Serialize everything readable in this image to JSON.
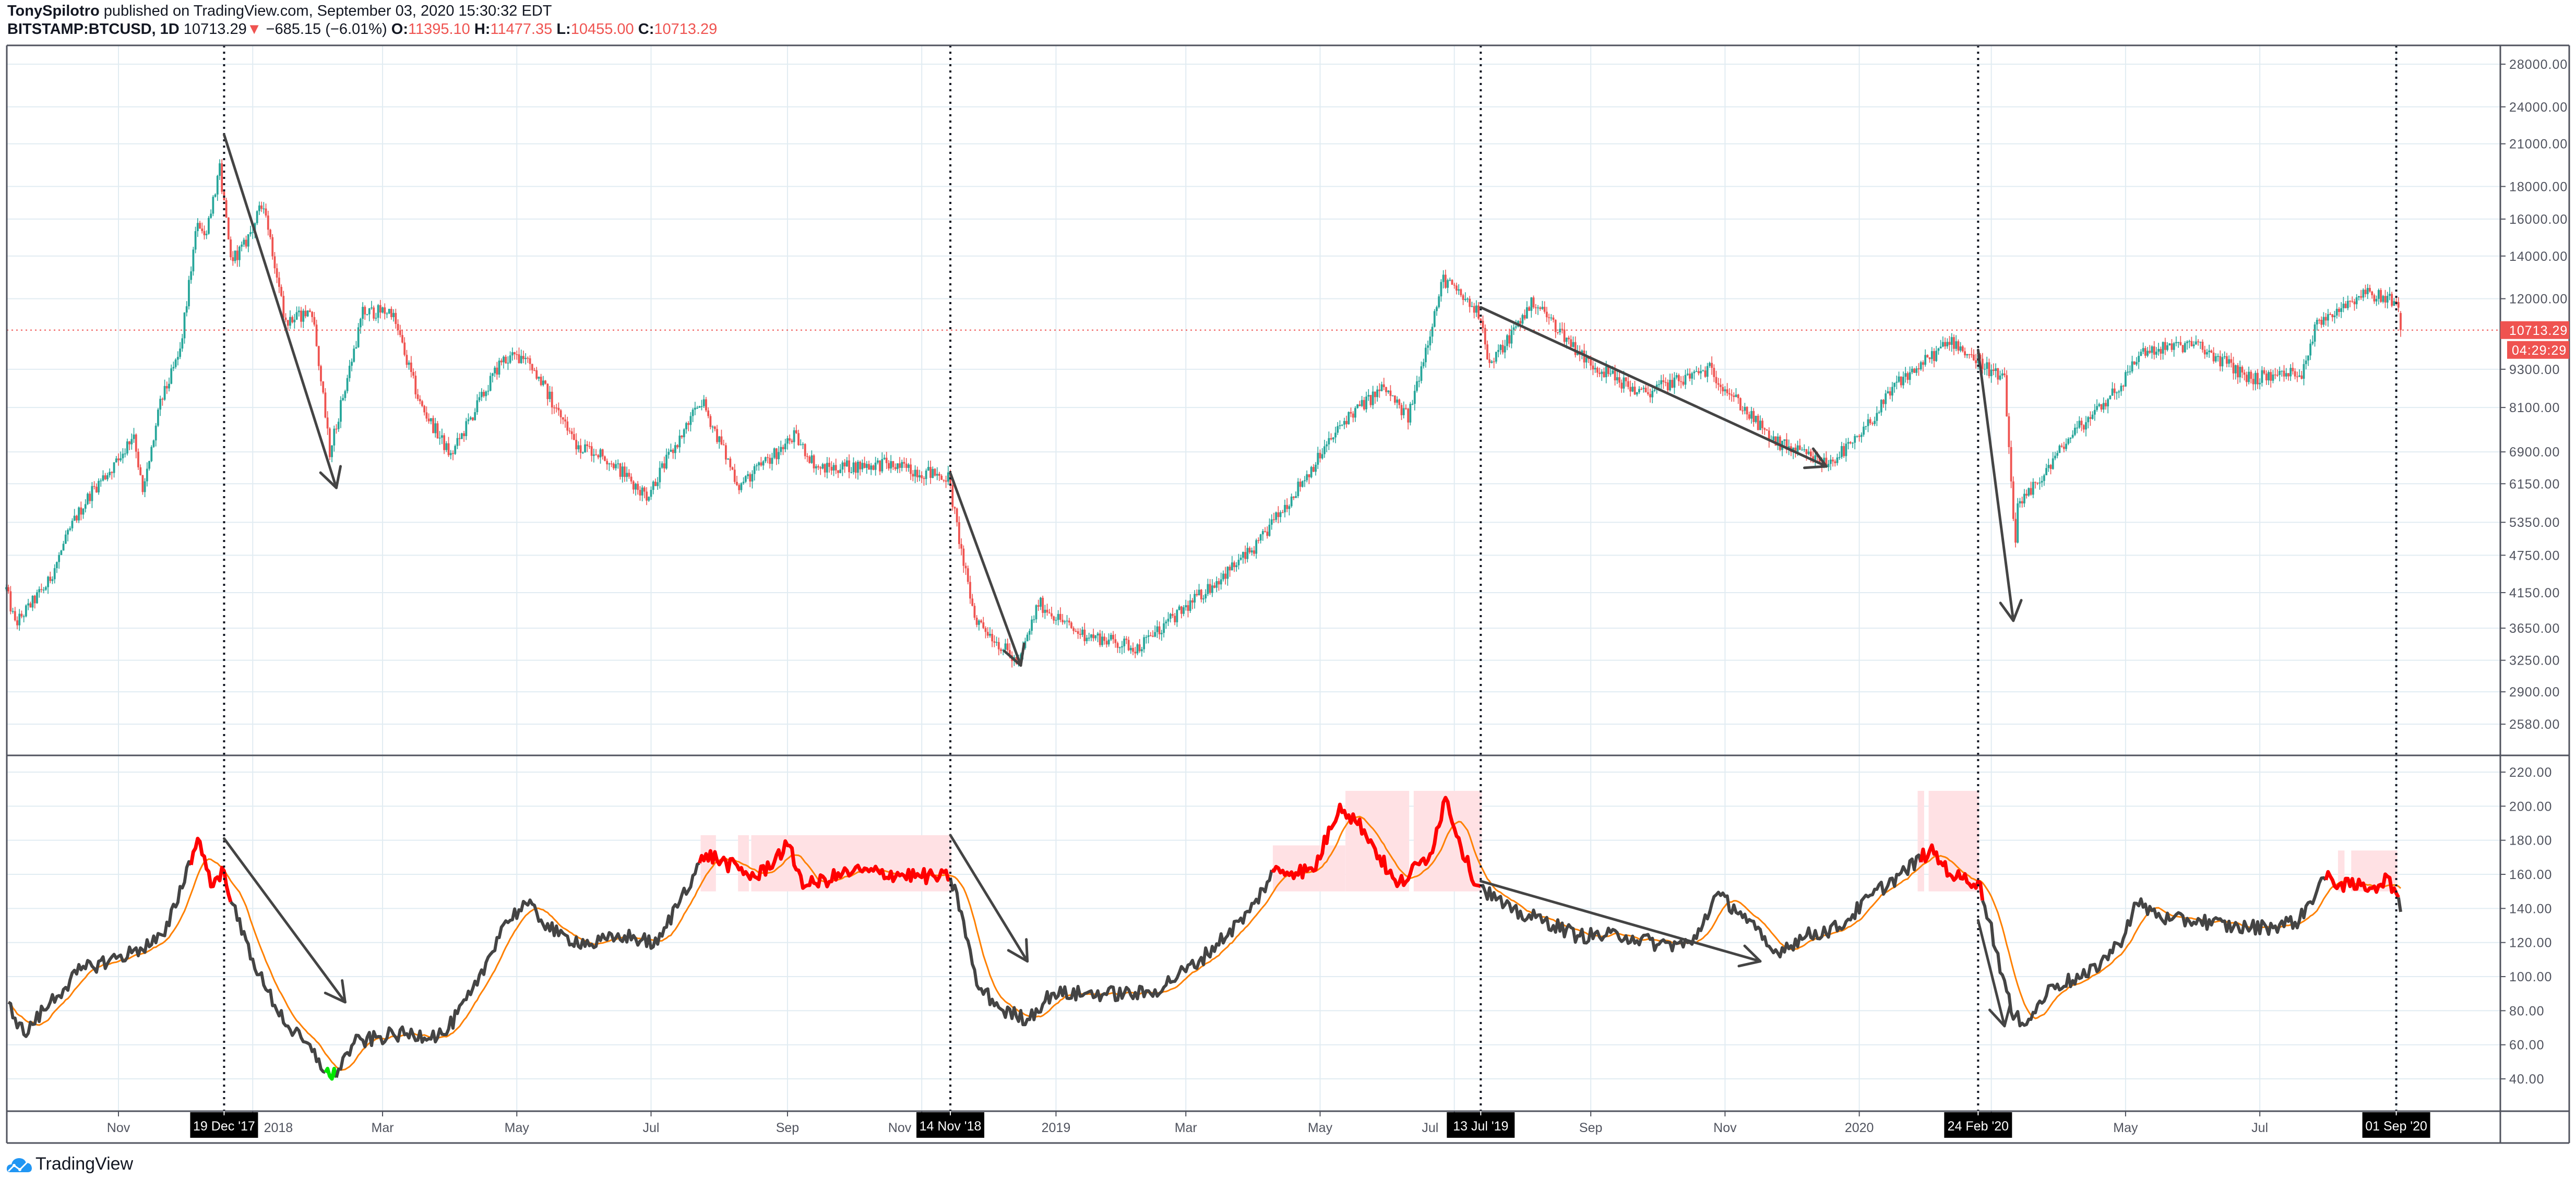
{
  "header": {
    "author": "TonySpilotro",
    "published": "published on TradingView.com, September 03, 2020 15:30:32 EDT",
    "symbol": "BITSTAMP:BTCUSD, 1D",
    "last": "10713.29",
    "change": "−685.15 (−6.01%)",
    "o_label": "O:",
    "o": "11395.10",
    "h_label": "H:",
    "h": "11477.35",
    "l_label": "L:",
    "l": "10455.00",
    "c_label": "C:",
    "c": "10713.29"
  },
  "colors": {
    "up": "#26a69a",
    "down": "#ef5350",
    "grid": "#e1ecf2",
    "axis": "#50535e",
    "indicator": "#444444",
    "indicator_hot": "#ff0000",
    "indicator_low": "#00e600",
    "ma": "#ff8000",
    "zone": "#ffe1e4",
    "arrow": "#444444",
    "logo": "#2196f3"
  },
  "price_axis": {
    "ticks": [
      "28000.00",
      "24000.00",
      "21000.00",
      "18000.00",
      "16000.00",
      "14000.00",
      "12000.00",
      "9300.00",
      "8100.00",
      "6900.00",
      "6150.00",
      "5350.00",
      "4750.00",
      "4150.00",
      "3650.00",
      "3250.00",
      "2900.00",
      "2580.00"
    ],
    "current_price_label": "10713.29",
    "countdown": "04:29:29"
  },
  "indicator_axis": {
    "ticks": [
      "220.00",
      "200.00",
      "180.00",
      "160.00",
      "140.00",
      "120.00",
      "100.00",
      "80.00",
      "60.00",
      "40.00"
    ]
  },
  "time_axis": {
    "labels": [
      {
        "text": "Nov",
        "date": "2017-11-01"
      },
      {
        "text": "2018",
        "date": "2018-01-01"
      },
      {
        "text": "Mar",
        "date": "2018-03-01"
      },
      {
        "text": "May",
        "date": "2018-05-01"
      },
      {
        "text": "Jul",
        "date": "2018-07-01"
      },
      {
        "text": "Sep",
        "date": "2018-09-01"
      },
      {
        "text": "Nov",
        "date": "2018-11-01"
      },
      {
        "text": "2019",
        "date": "2019-01-01"
      },
      {
        "text": "Mar",
        "date": "2019-03-01"
      },
      {
        "text": "May",
        "date": "2019-05-01"
      },
      {
        "text": "Jul",
        "date": "2019-07-01"
      },
      {
        "text": "Sep",
        "date": "2019-09-01"
      },
      {
        "text": "Nov",
        "date": "2019-11-01"
      },
      {
        "text": "2020",
        "date": "2020-01-01"
      },
      {
        "text": "May",
        "date": "2020-05-01"
      },
      {
        "text": "Jul",
        "date": "2020-07-01"
      }
    ],
    "grid_dates": [
      "2020-03-01",
      "2020-09-01"
    ],
    "markers": [
      {
        "text": "19 Dec '17",
        "date": "2017-12-19"
      },
      {
        "text": "14 Nov '18",
        "date": "2018-11-14"
      },
      {
        "text": "13 Jul '19",
        "date": "2019-07-13"
      },
      {
        "text": "24 Feb '20",
        "date": "2020-02-24"
      },
      {
        "text": "01 Sep '20",
        "date": "2020-09-01"
      }
    ]
  },
  "footer": {
    "logo_text": "TradingView"
  },
  "chart_data": [
    {
      "type": "candlestick",
      "title": "BITSTAMP:BTCUSD, 1D",
      "scale": "log",
      "ylim": [
        2400,
        30000
      ],
      "approx_closes": [
        [
          "2017-09-11",
          4200
        ],
        [
          "2017-09-15",
          3700
        ],
        [
          "2017-09-30",
          4300
        ],
        [
          "2017-10-12",
          5400
        ],
        [
          "2017-10-20",
          6000
        ],
        [
          "2017-11-01",
          6700
        ],
        [
          "2017-11-08",
          7400
        ],
        [
          "2017-11-12",
          5900
        ],
        [
          "2017-11-20",
          8200
        ],
        [
          "2017-11-29",
          9900
        ],
        [
          "2017-12-07",
          16000
        ],
        [
          "2017-12-10",
          15000
        ],
        [
          "2017-12-17",
          19100
        ],
        [
          "2017-12-22",
          13800
        ],
        [
          "2017-12-28",
          14500
        ],
        [
          "2018-01-06",
          17000
        ],
        [
          "2018-01-16",
          11000
        ],
        [
          "2018-01-28",
          11500
        ],
        [
          "2018-02-05",
          6900
        ],
        [
          "2018-02-20",
          11400
        ],
        [
          "2018-03-05",
          11500
        ],
        [
          "2018-03-18",
          8200
        ],
        [
          "2018-04-01",
          6800
        ],
        [
          "2018-04-24",
          9600
        ],
        [
          "2018-05-05",
          9800
        ],
        [
          "2018-05-28",
          7100
        ],
        [
          "2018-06-10",
          6800
        ],
        [
          "2018-06-29",
          5900
        ],
        [
          "2018-07-24",
          8300
        ],
        [
          "2018-08-10",
          6100
        ],
        [
          "2018-09-04",
          7300
        ],
        [
          "2018-09-15",
          6500
        ],
        [
          "2018-10-15",
          6600
        ],
        [
          "2018-11-13",
          6300
        ],
        [
          "2018-11-20",
          4600
        ],
        [
          "2018-11-25",
          3800
        ],
        [
          "2018-12-15",
          3200
        ],
        [
          "2018-12-24",
          4000
        ],
        [
          "2019-01-10",
          3600
        ],
        [
          "2019-02-07",
          3400
        ],
        [
          "2019-02-24",
          3800
        ],
        [
          "2019-04-02",
          4900
        ],
        [
          "2019-05-13",
          7800
        ],
        [
          "2019-05-30",
          8700
        ],
        [
          "2019-06-10",
          7800
        ],
        [
          "2019-06-26",
          12900
        ],
        [
          "2019-07-13",
          11300
        ],
        [
          "2019-07-17",
          9400
        ],
        [
          "2019-08-06",
          11900
        ],
        [
          "2019-08-30",
          9600
        ],
        [
          "2019-09-24",
          8500
        ],
        [
          "2019-10-25",
          9300
        ],
        [
          "2019-11-22",
          7200
        ],
        [
          "2019-12-17",
          6600
        ],
        [
          "2019-12-31",
          7200
        ],
        [
          "2020-01-19",
          8900
        ],
        [
          "2020-02-12",
          10300
        ],
        [
          "2020-02-24",
          9600
        ],
        [
          "2020-03-07",
          8900
        ],
        [
          "2020-03-12",
          4900
        ],
        [
          "2020-03-13",
          5600
        ],
        [
          "2020-04-06",
          7300
        ],
        [
          "2020-04-29",
          8800
        ],
        [
          "2020-05-08",
          9900
        ],
        [
          "2020-06-01",
          10200
        ],
        [
          "2020-06-27",
          9000
        ],
        [
          "2020-07-20",
          9200
        ],
        [
          "2020-07-27",
          11000
        ],
        [
          "2020-08-17",
          12300
        ],
        [
          "2020-09-01",
          11900
        ],
        [
          "2020-09-02",
          11395.1
        ]
      ],
      "last_bar": {
        "date": "2020-09-03",
        "open": 11395.1,
        "high": 11477.35,
        "low": 10455.0,
        "close": 10713.29
      }
    },
    {
      "type": "line",
      "title": "indicator",
      "ylim": [
        25,
        225
      ],
      "series": [
        {
          "name": "indicator",
          "values": [
            [
              "2017-09-12",
              85
            ],
            [
              "2017-09-19",
              66
            ],
            [
              "2017-10-01",
              85
            ],
            [
              "2017-10-15",
              104
            ],
            [
              "2017-11-07",
              114
            ],
            [
              "2017-11-22",
              124
            ],
            [
              "2017-12-07",
              181
            ],
            [
              "2017-12-14",
              153
            ],
            [
              "2017-12-19",
              162
            ],
            [
              "2017-12-25",
              133
            ],
            [
              "2018-01-06",
              95
            ],
            [
              "2018-01-17",
              71
            ],
            [
              "2018-01-28",
              56
            ],
            [
              "2018-02-06",
              40
            ],
            [
              "2018-02-16",
              61
            ],
            [
              "2018-03-06",
              66
            ],
            [
              "2018-03-29",
              66
            ],
            [
              "2018-04-13",
              95
            ],
            [
              "2018-04-24",
              129
            ],
            [
              "2018-05-05",
              143
            ],
            [
              "2018-05-20",
              124
            ],
            [
              "2018-06-04",
              119
            ],
            [
              "2018-06-19",
              124
            ],
            [
              "2018-07-04",
              119
            ],
            [
              "2018-07-15",
              148
            ],
            [
              "2018-07-26",
              172
            ],
            [
              "2018-08-18",
              158
            ],
            [
              "2018-09-01",
              177
            ],
            [
              "2018-09-09",
              153
            ],
            [
              "2018-10-01",
              162
            ],
            [
              "2018-10-31",
              159
            ],
            [
              "2018-11-14",
              158
            ],
            [
              "2018-11-19",
              138
            ],
            [
              "2018-11-26",
              95
            ],
            [
              "2018-12-08",
              80
            ],
            [
              "2018-12-19",
              75
            ],
            [
              "2018-12-30",
              90
            ],
            [
              "2019-01-14",
              90
            ],
            [
              "2019-02-13",
              90
            ],
            [
              "2019-03-07",
              109
            ],
            [
              "2019-03-30",
              138
            ],
            [
              "2019-04-10",
              162
            ],
            [
              "2019-04-28",
              162
            ],
            [
              "2019-05-10",
              201
            ],
            [
              "2019-05-21",
              186
            ],
            [
              "2019-06-05",
              153
            ],
            [
              "2019-06-20",
              172
            ],
            [
              "2019-06-27",
              205
            ],
            [
              "2019-07-08",
              162
            ],
            [
              "2019-07-13",
              153
            ],
            [
              "2019-07-27",
              138
            ],
            [
              "2019-08-11",
              133
            ],
            [
              "2019-08-26",
              124
            ],
            [
              "2019-09-17",
              124
            ],
            [
              "2019-10-02",
              119
            ],
            [
              "2019-10-17",
              119
            ],
            [
              "2019-10-28",
              148
            ],
            [
              "2019-11-08",
              138
            ],
            [
              "2019-11-23",
              114
            ],
            [
              "2019-12-08",
              124
            ],
            [
              "2019-12-23",
              129
            ],
            [
              "2020-01-07",
              148
            ],
            [
              "2020-01-22",
              162
            ],
            [
              "2020-02-02",
              174
            ],
            [
              "2020-02-14",
              158
            ],
            [
              "2020-02-24",
              156
            ],
            [
              "2020-02-29",
              133
            ],
            [
              "2020-03-11",
              75
            ],
            [
              "2020-03-18",
              75
            ],
            [
              "2020-03-29",
              95
            ],
            [
              "2020-04-13",
              100
            ],
            [
              "2020-04-28",
              119
            ],
            [
              "2020-05-06",
              143
            ],
            [
              "2020-05-21",
              133
            ],
            [
              "2020-06-04",
              133
            ],
            [
              "2020-06-19",
              129
            ],
            [
              "2020-07-04",
              129
            ],
            [
              "2020-07-19",
              133
            ],
            [
              "2020-07-30",
              158
            ],
            [
              "2020-08-11",
              153
            ],
            [
              "2020-08-22",
              153
            ],
            [
              "2020-08-29",
              158
            ],
            [
              "2020-09-03",
              138
            ]
          ]
        },
        {
          "name": "moving_average",
          "period": 12
        }
      ],
      "hot_ranges": [
        [
          "2017-12-05",
          "2017-12-22"
        ],
        [
          "2018-07-24",
          "2018-11-14"
        ],
        [
          "2019-04-10",
          "2019-07-13"
        ],
        [
          "2020-01-30",
          "2020-02-26"
        ],
        [
          "2020-08-01",
          "2020-09-02"
        ]
      ],
      "low_ranges": [
        [
          "2018-02-04",
          "2018-02-08"
        ]
      ],
      "zones": [
        {
          "start": "2018-07-24",
          "end": "2018-07-30",
          "top": 183,
          "base": 150
        },
        {
          "start": "2018-08-10",
          "end": "2018-08-14",
          "top": 183,
          "base": 150
        },
        {
          "start": "2018-08-16",
          "end": "2018-11-14",
          "top": 183,
          "base": 150
        },
        {
          "start": "2019-04-10",
          "end": "2019-05-12",
          "top": 177,
          "base": 150
        },
        {
          "start": "2019-05-13",
          "end": "2019-06-10",
          "top": 209,
          "base": 150
        },
        {
          "start": "2019-06-13",
          "end": "2019-07-13",
          "top": 209,
          "base": 150
        },
        {
          "start": "2020-01-28",
          "end": "2020-01-30",
          "top": 209,
          "base": 150
        },
        {
          "start": "2020-02-02",
          "end": "2020-02-24",
          "top": 209,
          "base": 150
        },
        {
          "start": "2020-08-06",
          "end": "2020-08-08",
          "top": 174,
          "base": 150
        },
        {
          "start": "2020-08-12",
          "end": "2020-09-01",
          "top": 174,
          "base": 150
        }
      ]
    }
  ],
  "annotations": {
    "price_arrows": [
      {
        "from": [
          "2017-12-19",
          21700
        ],
        "to": [
          "2018-02-08",
          6060
        ]
      },
      {
        "from": [
          "2018-11-14",
          6390
        ],
        "to": [
          "2018-12-16",
          3190
        ]
      },
      {
        "from": [
          "2019-07-13",
          11630
        ],
        "to": [
          "2019-12-17",
          6550
        ]
      },
      {
        "from": [
          "2020-02-24",
          9970
        ],
        "to": [
          "2020-03-11",
          3750
        ]
      }
    ],
    "indicator_arrows": [
      {
        "from": [
          "2017-12-19",
          181
        ],
        "to": [
          "2018-02-12",
          85
        ]
      },
      {
        "from": [
          "2018-11-14",
          183
        ],
        "to": [
          "2018-12-19",
          109
        ]
      },
      {
        "from": [
          "2019-07-13",
          156
        ],
        "to": [
          "2019-11-17",
          109
        ]
      },
      {
        "from": [
          "2020-02-24",
          133
        ],
        "to": [
          "2020-03-07",
          71
        ]
      }
    ]
  }
}
